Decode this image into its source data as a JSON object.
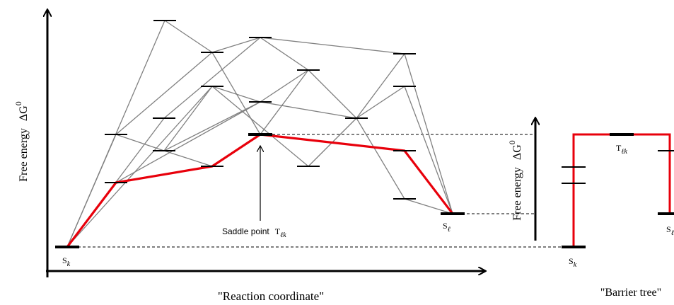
{
  "left_panel": {
    "y_axis_label": "Free energy",
    "y_axis_symbol": "ΔG",
    "y_axis_symbol_sup": "0",
    "x_axis_caption": "\"Reaction coordinate\"",
    "saddle_label": "Saddle point",
    "saddle_symbol_base": "T",
    "saddle_symbol_sub": "ℓk",
    "start_state_base": "S",
    "start_state_sub": "k",
    "end_state_base": "S",
    "end_state_sub": "ℓ"
  },
  "right_panel": {
    "y_axis_label": "Free energy",
    "y_axis_symbol": "ΔG",
    "y_axis_symbol_sup": "0",
    "caption": "\"Barrier tree\"",
    "saddle_symbol_base": "T",
    "saddle_symbol_sub": "ℓk",
    "start_state_base": "S",
    "start_state_sub": "k",
    "end_state_base": "S",
    "end_state_sub": "ℓ"
  },
  "colors": {
    "path_highlight": "#e8000b",
    "connection": "#808080",
    "level": "#000000"
  }
}
